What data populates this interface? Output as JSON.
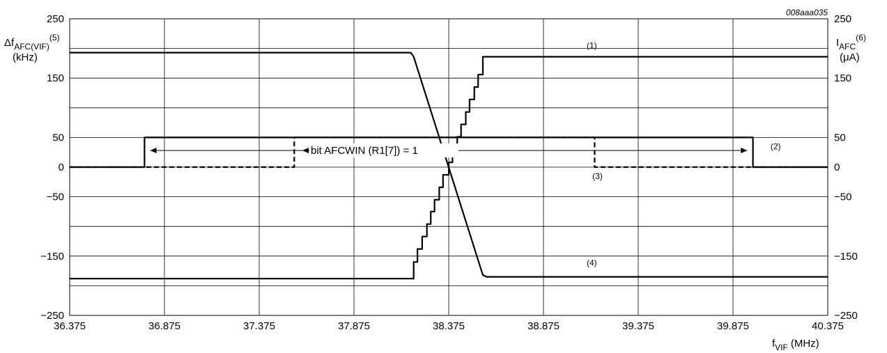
{
  "figure_code": "008aaa035",
  "chart_data": {
    "type": "line",
    "x_axis": {
      "label_main": "f",
      "label_sub": "VIF",
      "label_unit": "(MHz)",
      "range": [
        36.375,
        40.375
      ],
      "ticks": [
        36.375,
        36.875,
        37.375,
        37.875,
        38.375,
        38.875,
        39.375,
        39.875,
        40.375
      ],
      "tick_labels": [
        "36.375",
        "36.875",
        "37.375",
        "37.875",
        "38.375",
        "38.875",
        "39.375",
        "39.875",
        "40.375"
      ],
      "extra_gridlines": [
        36.875,
        37.375,
        37.875,
        38.375,
        38.875,
        39.375,
        39.875
      ]
    },
    "y_left": {
      "label_main": "Δf",
      "label_sub": "AFC(VIF)",
      "label_sup": "(5)",
      "label_unit": "(kHz)",
      "range": [
        -250,
        250
      ],
      "tick_values": [
        250,
        150,
        50,
        0,
        -50,
        -150,
        -250
      ],
      "tick_labels": [
        "250",
        "150",
        "50",
        "0",
        "−50",
        "−150",
        "−250"
      ],
      "gridlines": [
        -200,
        -150,
        -100,
        -50,
        0,
        50,
        100,
        150,
        200
      ]
    },
    "y_right": {
      "label_main": "I",
      "label_sub": "AFC",
      "label_sup": "(6)",
      "label_unit": "(μA)",
      "tick_values": [
        250,
        150,
        50,
        0,
        -50,
        -150,
        -250
      ],
      "tick_labels": [
        "250",
        "150",
        "50",
        "0",
        "−50",
        "−150",
        "−250"
      ]
    },
    "grid": true,
    "series": [
      {
        "id": "1",
        "style": "solid",
        "points": [
          [
            36.375,
            -188
          ],
          [
            38.19,
            -188
          ],
          [
            38.19,
            -160
          ],
          [
            38.21,
            -160
          ],
          [
            38.21,
            -138
          ],
          [
            38.235,
            -138
          ],
          [
            38.235,
            -117
          ],
          [
            38.26,
            -117
          ],
          [
            38.26,
            -96
          ],
          [
            38.28,
            -96
          ],
          [
            38.28,
            -75
          ],
          [
            38.3,
            -75
          ],
          [
            38.3,
            -55
          ],
          [
            38.325,
            -55
          ],
          [
            38.325,
            -34
          ],
          [
            38.345,
            -34
          ],
          [
            38.345,
            -13
          ],
          [
            38.375,
            -13
          ],
          [
            38.375,
            8
          ],
          [
            38.395,
            8
          ],
          [
            38.395,
            30
          ],
          [
            38.42,
            30
          ],
          [
            38.42,
            51
          ],
          [
            38.44,
            51
          ],
          [
            38.44,
            72
          ],
          [
            38.465,
            72
          ],
          [
            38.465,
            93
          ],
          [
            38.485,
            93
          ],
          [
            38.485,
            114
          ],
          [
            38.51,
            114
          ],
          [
            38.51,
            135
          ],
          [
            38.53,
            135
          ],
          [
            38.53,
            156
          ],
          [
            38.555,
            156
          ],
          [
            38.555,
            186
          ],
          [
            40.375,
            186
          ]
        ]
      },
      {
        "id": "2",
        "style": "solid",
        "points": [
          [
            36.375,
            0
          ],
          [
            36.77,
            0
          ],
          [
            36.77,
            50
          ],
          [
            39.98,
            50
          ],
          [
            39.98,
            0
          ],
          [
            40.375,
            0
          ]
        ]
      },
      {
        "id": "3",
        "style": "dashed",
        "points": [
          [
            36.375,
            0
          ],
          [
            37.56,
            0
          ],
          [
            37.56,
            50
          ],
          [
            39.145,
            50
          ],
          [
            39.145,
            0
          ],
          [
            40.375,
            0
          ]
        ]
      },
      {
        "id": "4",
        "style": "solid",
        "points": [
          [
            36.375,
            193
          ],
          [
            38.175,
            193
          ],
          [
            38.19,
            186
          ],
          [
            38.555,
            -182
          ],
          [
            38.575,
            -185
          ],
          [
            40.375,
            -185
          ]
        ]
      }
    ],
    "annotations": [
      {
        "text": "bit AFCWIN (R1[7]) = 1",
        "type": "range-arrow",
        "x_from": 36.8,
        "x_to": 39.95,
        "y": 28
      },
      {
        "text": "(1)",
        "x": 39.13,
        "y": 200
      },
      {
        "text": "(2)",
        "x": 40.1,
        "y": 30
      },
      {
        "text": "(3)",
        "x": 39.16,
        "y": -20
      },
      {
        "text": "(4)",
        "x": 39.13,
        "y": -166
      }
    ]
  }
}
